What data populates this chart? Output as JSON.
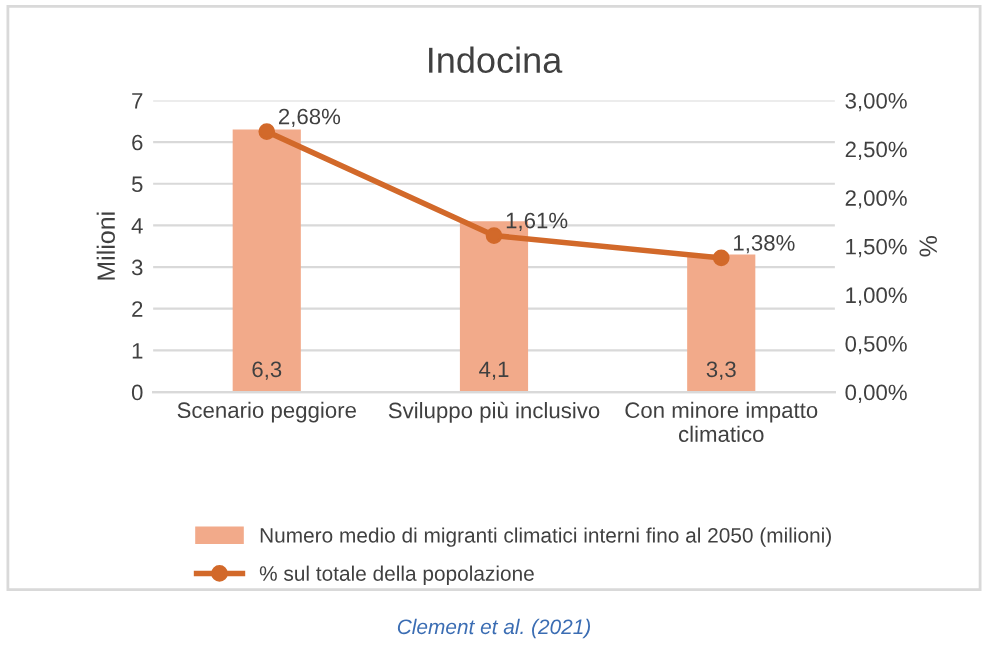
{
  "chart_data": {
    "type": "bar",
    "title": "Indocina",
    "ylabel": "Milioni",
    "y2label": "%",
    "categories": [
      "Scenario peggiore",
      "Sviluppo più inclusivo",
      "Con minore impatto climatico"
    ],
    "series": [
      {
        "name": "Numero medio di migranti climatici interni fino al 2050 (milioni)",
        "color": "#f2aa8a",
        "values": [
          6.3,
          4.1,
          3.3
        ],
        "value_labels": [
          "6,3",
          "4,1",
          "3,3"
        ]
      },
      {
        "name": "% sul totale della popolazione",
        "type": "line",
        "axis": "y2",
        "color": "#d2692a",
        "values": [
          2.68,
          1.61,
          1.38
        ],
        "value_labels": [
          "2,68%",
          "1,61%",
          "1,38%"
        ],
        "marker": "circle"
      }
    ],
    "ylim": [
      0,
      7
    ],
    "yticks": [
      0,
      1,
      2,
      3,
      4,
      5,
      6,
      7
    ],
    "y2lim": [
      0,
      3
    ],
    "y2ticks": [
      {
        "value": 0,
        "label": "0,00%"
      },
      {
        "value": 0.5,
        "label": "0,50%"
      },
      {
        "value": 1,
        "label": "1,00%"
      },
      {
        "value": 1.5,
        "label": "1,50%"
      },
      {
        "value": 2,
        "label": "2,00%"
      },
      {
        "value": 2.5,
        "label": "2,50%"
      },
      {
        "value": 3,
        "label": "3,00%"
      }
    ],
    "grid": "y",
    "legend": "bottom",
    "annotations": [
      "Clement et al. (2021)"
    ]
  }
}
